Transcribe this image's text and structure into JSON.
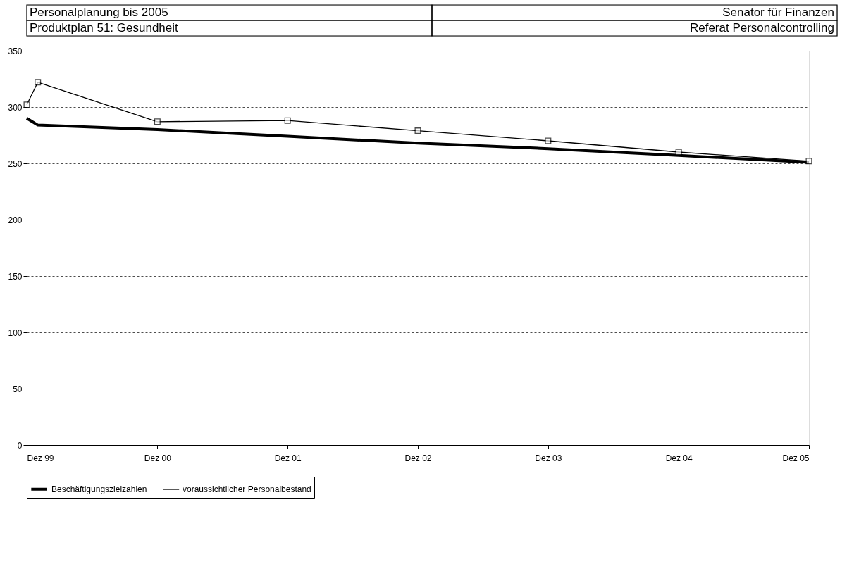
{
  "chart_data": {
    "type": "line",
    "title": "Personalplanung bis 2005",
    "subtitle": "Produktplan 51: Gesundheit",
    "annotations": [
      "Senator für Finanzen",
      "Referat Personalcontrolling"
    ],
    "series": [
      {
        "name": "Beschäftigungszielzahlen",
        "color": "#000000",
        "marker": "none",
        "x": [
          "1999-12",
          "2000-01",
          "2000-12",
          "2001-12",
          "2002-12",
          "2003-12",
          "2004-12",
          "2005-12"
        ],
        "values": [
          290,
          284,
          280,
          274,
          268,
          263,
          257,
          251
        ]
      },
      {
        "name": "voraussichtlicher Personalbestand",
        "color": "#000000",
        "marker": "square",
        "x": [
          "1999-12",
          "2000-01",
          "2000-12",
          "2001-12",
          "2002-12",
          "2003-12",
          "2004-12",
          "2005-12"
        ],
        "values": [
          302,
          322,
          287,
          288,
          279,
          270,
          260,
          252
        ]
      }
    ],
    "xlim": [
      "1999-12",
      "2005-12"
    ],
    "xticks": [
      {
        "value": "1999-12",
        "label": "Dez 99"
      },
      {
        "value": "2000-12",
        "label": "Dez 00"
      },
      {
        "value": "2001-12",
        "label": "Dez 01"
      },
      {
        "value": "2002-12",
        "label": "Dez 02"
      },
      {
        "value": "2003-12",
        "label": "Dez 03"
      },
      {
        "value": "2004-12",
        "label": "Dez 04"
      },
      {
        "value": "2005-12",
        "label": "Dez 05"
      }
    ],
    "ylim": [
      0,
      350
    ],
    "yticks": [
      0,
      50,
      100,
      150,
      200,
      250,
      300,
      350
    ],
    "grid": "y",
    "legend": "bottom",
    "line_style": "solid"
  }
}
